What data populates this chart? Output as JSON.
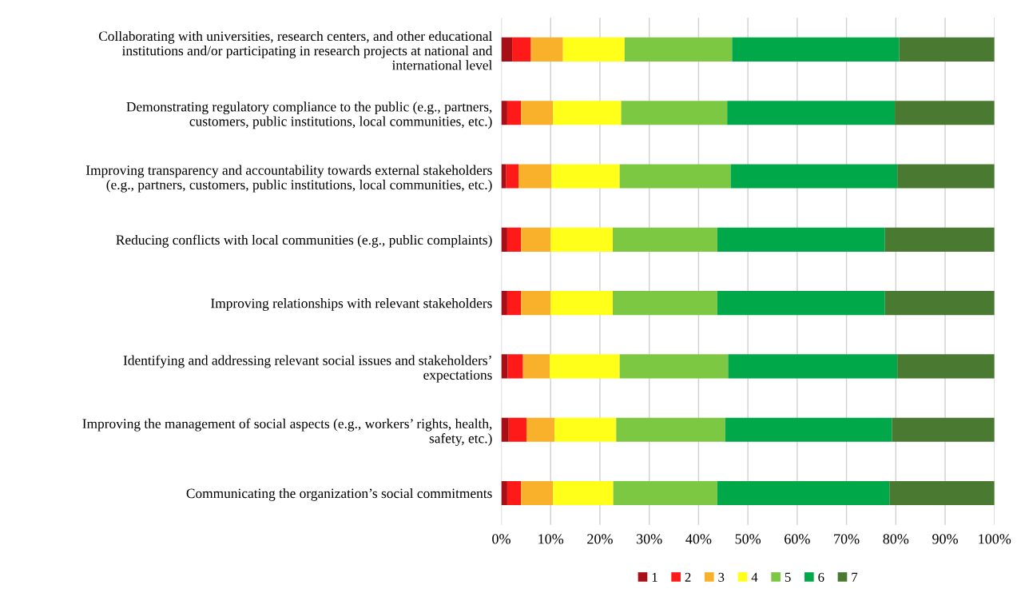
{
  "chart_data": {
    "type": "bar",
    "orientation": "horizontal",
    "stacked": true,
    "categories": [
      "Collaborating with universities, research centers, and other educational\ninstitutions and/or participating in research projects at national and\ninternational level",
      "Demonstrating regulatory compliance to the public (e.g., partners,\ncustomers, public institutions, local communities, etc.)",
      "Improving transparency and accountability towards external stakeholders\n(e.g., partners, customers, public institutions, local communities, etc.)",
      "Reducing conflicts with local communities (e.g., public complaints)",
      "Improving relationships with relevant stakeholders",
      "Identifying and addressing relevant social issues and stakeholders’\nexpectations",
      "Improving the management of social aspects (e.g., workers’ rights, health,\nsafety, etc.)",
      "Communicating the organization’s social commitments"
    ],
    "series": [
      {
        "name": "1",
        "color": "#a50f15",
        "values": [
          2.2,
          1.2,
          1.0,
          1.2,
          1.2,
          1.3,
          1.5,
          1.2
        ]
      },
      {
        "name": "2",
        "color": "#ff1a1a",
        "values": [
          3.8,
          2.8,
          2.5,
          2.8,
          2.8,
          3.1,
          3.6,
          2.8
        ]
      },
      {
        "name": "3",
        "color": "#f9b12b",
        "values": [
          6.5,
          6.5,
          6.7,
          6.0,
          6.0,
          5.4,
          5.7,
          6.5
        ]
      },
      {
        "name": "4",
        "color": "#ffff1a",
        "values": [
          12.5,
          13.8,
          13.8,
          12.6,
          12.6,
          14.2,
          12.5,
          12.2
        ]
      },
      {
        "name": "5",
        "color": "#7dc843",
        "values": [
          21.8,
          21.5,
          22.5,
          21.2,
          21.2,
          22.0,
          22.1,
          21.1
        ]
      },
      {
        "name": "6",
        "color": "#00a84a",
        "values": [
          33.9,
          34.0,
          33.8,
          34.0,
          34.0,
          34.3,
          33.8,
          34.9
        ]
      },
      {
        "name": "7",
        "color": "#4a7a32",
        "values": [
          19.3,
          20.2,
          19.7,
          22.2,
          22.2,
          19.7,
          20.8,
          21.3
        ]
      }
    ],
    "xlim": [
      0,
      100
    ],
    "xticks": [
      {
        "value": 0,
        "label": "0%"
      },
      {
        "value": 10,
        "label": "10%"
      },
      {
        "value": 20,
        "label": "20%"
      },
      {
        "value": 30,
        "label": "30%"
      },
      {
        "value": 40,
        "label": "40%"
      },
      {
        "value": 50,
        "label": "50%"
      },
      {
        "value": 60,
        "label": "60%"
      },
      {
        "value": 70,
        "label": "70%"
      },
      {
        "value": 80,
        "label": "80%"
      },
      {
        "value": 90,
        "label": "90%"
      },
      {
        "value": 100,
        "label": "100%"
      }
    ],
    "grid": "x",
    "legend": "bottom"
  }
}
